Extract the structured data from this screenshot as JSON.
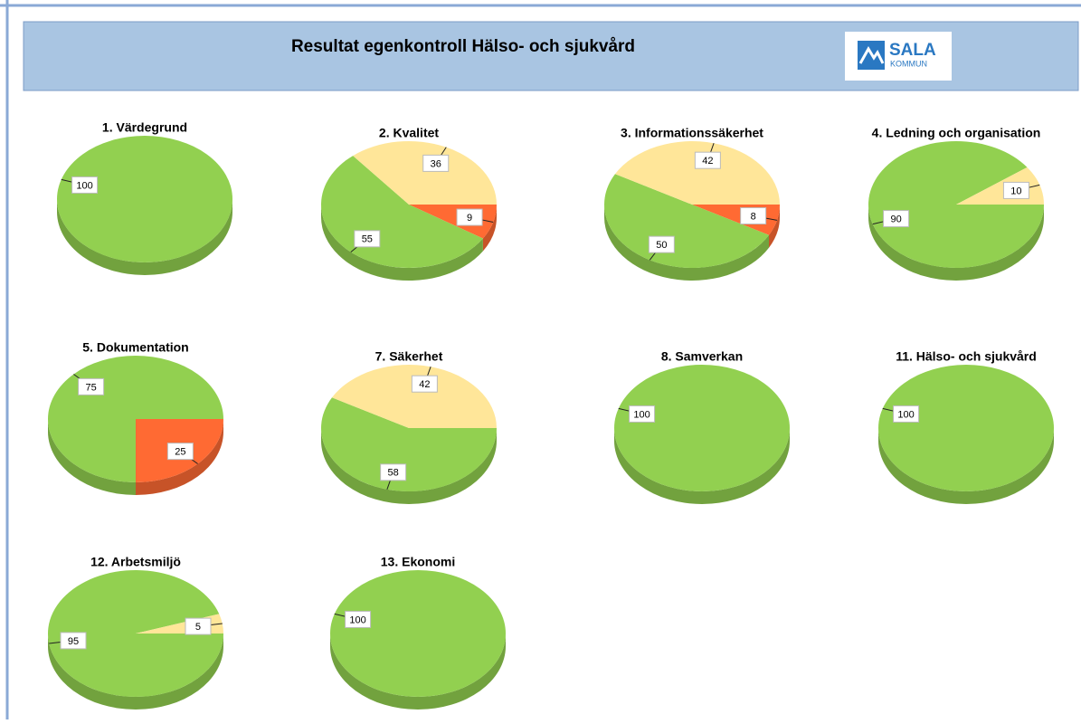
{
  "header": {
    "title": "Resultat egenkontroll Hälso- och sjukvård",
    "logo": [
      "SALA",
      "KOMMUN"
    ]
  },
  "chart_data": [
    {
      "type": "pie",
      "title": "1. Värdegrund",
      "values": [
        100
      ],
      "colors": [
        "#92d050"
      ]
    },
    {
      "type": "pie",
      "title": "2. Kvalitet",
      "values": [
        9,
        55,
        36
      ],
      "colors": [
        "#ff6a33",
        "#92d050",
        "#ffe699"
      ]
    },
    {
      "type": "pie",
      "title": "3. Informationssäkerhet",
      "values": [
        8,
        50,
        42
      ],
      "colors": [
        "#ff6a33",
        "#92d050",
        "#ffe699"
      ]
    },
    {
      "type": "pie",
      "title": "4. Ledning och organisation",
      "values": [
        90,
        10
      ],
      "colors": [
        "#92d050",
        "#ffe699"
      ]
    },
    {
      "type": "pie",
      "title": "5. Dokumentation",
      "values": [
        25,
        75
      ],
      "colors": [
        "#ff6a33",
        "#92d050"
      ]
    },
    {
      "type": "pie",
      "title": "7. Säkerhet",
      "values": [
        58,
        42
      ],
      "colors": [
        "#92d050",
        "#ffe699"
      ]
    },
    {
      "type": "pie",
      "title": "8. Samverkan",
      "values": [
        100
      ],
      "colors": [
        "#92d050"
      ]
    },
    {
      "type": "pie",
      "title": "11. Hälso- och sjukvård",
      "values": [
        100
      ],
      "colors": [
        "#92d050"
      ]
    },
    {
      "type": "pie",
      "title": "12. Arbetsmiljö",
      "values": [
        95,
        5
      ],
      "colors": [
        "#92d050",
        "#ffe699"
      ]
    },
    {
      "type": "pie",
      "title": "13. Ekonomi",
      "values": [
        100
      ],
      "colors": [
        "#92d050"
      ]
    }
  ]
}
